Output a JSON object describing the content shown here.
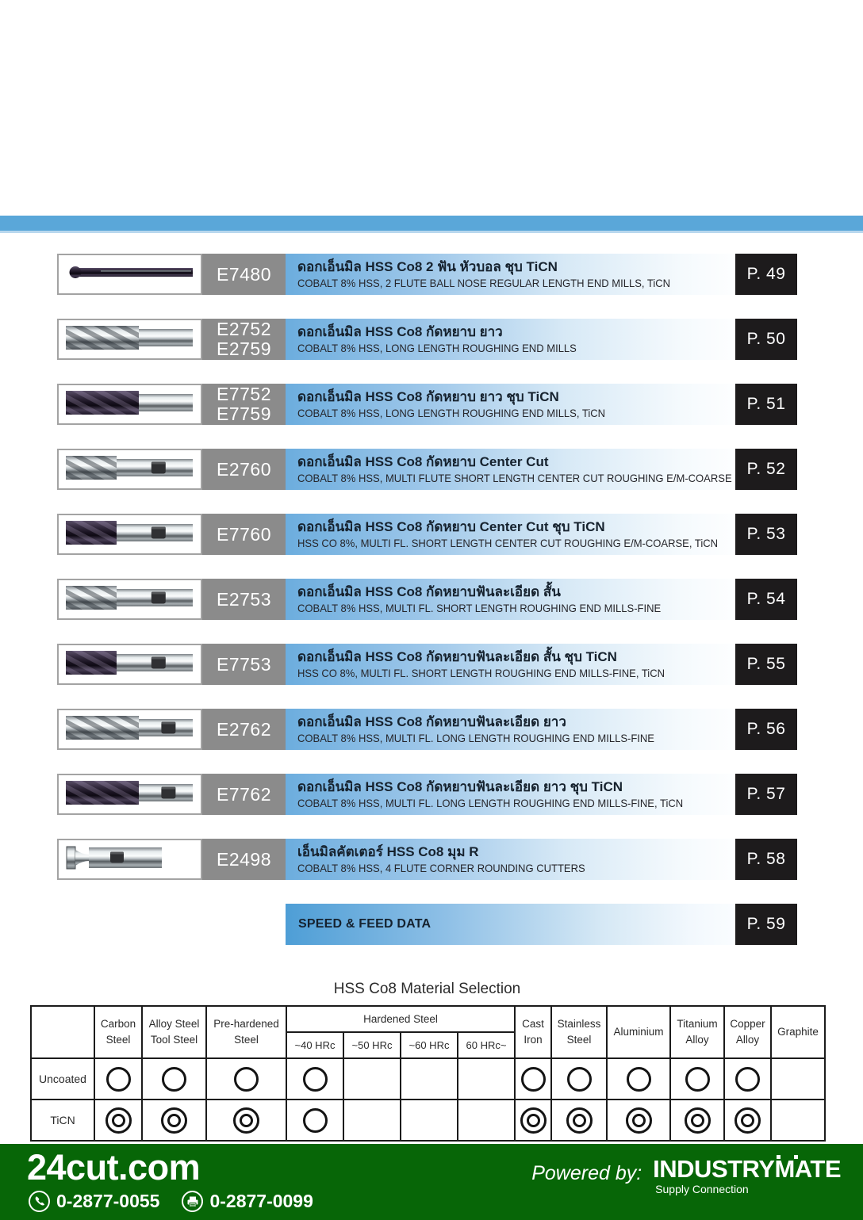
{
  "colors": {
    "top_bar": "#5aa7d9",
    "band_blue": "#6cadde",
    "code_box_gray": "#8b8b8b",
    "page_box_black": "#1d1b1c",
    "footer_green": "#076607"
  },
  "products": [
    {
      "codes": [
        "E7480"
      ],
      "title_th": "ดอกเอ็นมิล HSS Co8  2 ฟัน หัวบอล ชุบ TiCN",
      "title_en": "COBALT 8% HSS, 2 FLUTE BALL NOSE REGULAR LENGTH END MILLS, TiCN",
      "page": "P. 49",
      "tool": "ball-nose-dark"
    },
    {
      "codes": [
        "E2752",
        "E2759"
      ],
      "title_th": "ดอกเอ็นมิล HSS Co8  กัดหยาบ ยาว",
      "title_en": "COBALT 8% HSS, LONG LENGTH ROUGHING END MILLS",
      "page": "P. 50",
      "tool": "roughing-long-silver"
    },
    {
      "codes": [
        "E7752",
        "E7759"
      ],
      "title_th": "ดอกเอ็นมิล HSS Co8  กัดหยาบ ยาว ชุบ TiCN",
      "title_en": "COBALT 8% HSS, LONG LENGTH ROUGHING END MILLS, TiCN",
      "page": "P. 51",
      "tool": "roughing-long-dark"
    },
    {
      "codes": [
        "E2760"
      ],
      "title_th": "ดอกเอ็นมิล HSS Co8  กัดหยาบ Center Cut",
      "title_en": "COBALT 8% HSS, MULTI FLUTE SHORT LENGTH CENTER CUT ROUGHING E/M-COARSE",
      "page": "P. 52",
      "tool": "roughing-short-silver-flat"
    },
    {
      "codes": [
        "E7760"
      ],
      "title_th": "ดอกเอ็นมิล HSS Co8  กัดหยาบ Center Cut ชุบ TiCN",
      "title_en": "HSS CO 8%, MULTI FL. SHORT LENGTH CENTER CUT ROUGHING E/M-COARSE, TiCN",
      "page": "P. 53",
      "tool": "roughing-short-dark-flat"
    },
    {
      "codes": [
        "E2753"
      ],
      "title_th": "ดอกเอ็นมิล HSS Co8  กัดหยาบฟันละเอียด สั้น",
      "title_en": "COBALT 8% HSS, MULTI FL. SHORT LENGTH ROUGHING END MILLS-FINE",
      "page": "P. 54",
      "tool": "roughing-short-silver-flat"
    },
    {
      "codes": [
        "E7753"
      ],
      "title_th": "ดอกเอ็นมิล HSS Co8  กัดหยาบฟันละเอียด สั้น ชุบ TiCN",
      "title_en": "HSS CO 8%, MULTI FL. SHORT LENGTH ROUGHING END MILLS-FINE, TiCN",
      "page": "P. 55",
      "tool": "roughing-short-dark-flat"
    },
    {
      "codes": [
        "E2762"
      ],
      "title_th": "ดอกเอ็นมิล HSS Co8  กัดหยาบฟันละเอียด ยาว",
      "title_en": "COBALT 8% HSS, MULTI FL. LONG LENGTH ROUGHING END MILLS-FINE",
      "page": "P. 56",
      "tool": "roughing-long-silver-flat"
    },
    {
      "codes": [
        "E7762"
      ],
      "title_th": "ดอกเอ็นมิล HSS Co8  กัดหยาบฟันละเอียด ยาว ชุบ TiCN",
      "title_en": "COBALT 8% HSS, MULTI FL. LONG LENGTH ROUGHING END MILLS-FINE, TiCN",
      "page": "P. 57",
      "tool": "roughing-long-dark-flat"
    },
    {
      "codes": [
        "E2498"
      ],
      "title_th": "เอ็นมิลคัตเตอร์ HSS Co8  มุม R",
      "title_en": "COBALT 8% HSS, 4 FLUTE CORNER ROUNDING CUTTERS",
      "page": "P. 58",
      "tool": "corner-rounding-silver"
    }
  ],
  "speed_row": {
    "label": "SPEED & FEED DATA",
    "page": "P. 59"
  },
  "material_table": {
    "title": "HSS Co8 Material Selection",
    "headers": {
      "carbon": [
        "Carbon",
        "Steel"
      ],
      "alloy": [
        "Alloy Steel",
        "Tool Steel"
      ],
      "prehardened": [
        "Pre-hardened",
        "Steel"
      ],
      "hardened_group": "Hardened Steel",
      "hardened_sub": [
        "~40 HRc",
        "~50 HRc",
        "~60 HRc",
        "60 HRc~"
      ],
      "cast": [
        "Cast",
        "Iron"
      ],
      "stainless": [
        "Stainless",
        "Steel"
      ],
      "aluminium": [
        "Aluminium",
        ""
      ],
      "titanium": [
        "Titanium",
        "Alloy"
      ],
      "copper": [
        "Copper",
        "Alloy"
      ],
      "graphite": [
        "Graphite",
        ""
      ]
    },
    "rows": [
      {
        "label": "Uncoated",
        "cells": [
          "single",
          "single",
          "single",
          "single",
          "",
          "",
          "",
          "single",
          "single",
          "single",
          "single",
          "single",
          ""
        ]
      },
      {
        "label": "TiCN",
        "cells": [
          "double",
          "double",
          "double",
          "single",
          "",
          "",
          "",
          "double",
          "double",
          "double",
          "double",
          "double",
          ""
        ]
      }
    ]
  },
  "footer": {
    "site": "24cut.com",
    "phone": "0-2877-0055",
    "fax": "0-2877-0099",
    "powered_by": "Powered by:",
    "brand": "INDUSTRYMATE",
    "brand_sub": "Supply Connection"
  }
}
